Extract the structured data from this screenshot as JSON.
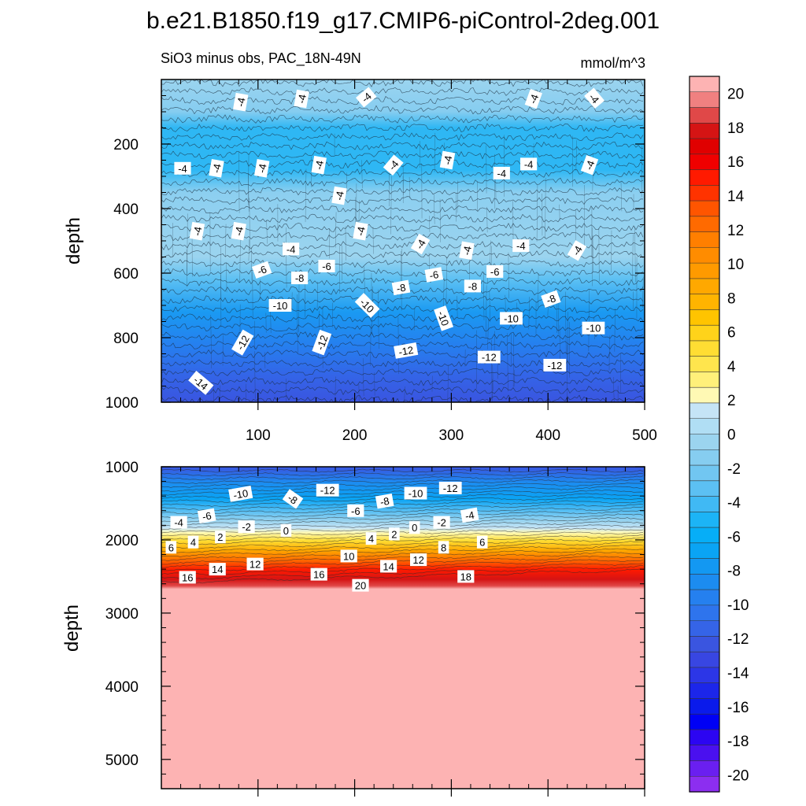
{
  "title": "b.e21.B1850.f19_g17.CMIP6-piControl-2deg.001",
  "subtitle_left": "SiO3 minus obs, PAC_18N-49N",
  "subtitle_right": "mmol/m^3",
  "chart_data": [
    {
      "type": "contour",
      "name": "upper-panel",
      "ylabel": "depth",
      "xlabel": "",
      "xlim": [
        0,
        500
      ],
      "ylim": [
        1000,
        0
      ],
      "xticks": [
        100,
        200,
        300,
        400,
        500
      ],
      "yticks": [
        200,
        400,
        600,
        800,
        1000
      ],
      "contour_labels": [
        {
          "t": "-4",
          "x": 82,
          "y": 70,
          "r": -80
        },
        {
          "t": "-4",
          "x": 145,
          "y": 60,
          "r": -80
        },
        {
          "t": "-4",
          "x": 212,
          "y": 55,
          "r": -40
        },
        {
          "t": "-4",
          "x": 385,
          "y": 60,
          "r": -70
        },
        {
          "t": "-4",
          "x": 448,
          "y": 58,
          "r": 50
        },
        {
          "t": "-4",
          "x": 22,
          "y": 275,
          "r": 0
        },
        {
          "t": "-4",
          "x": 57,
          "y": 275,
          "r": -80
        },
        {
          "t": "-4",
          "x": 104,
          "y": 275,
          "r": -80
        },
        {
          "t": "-4",
          "x": 163,
          "y": 265,
          "r": -80
        },
        {
          "t": "-4",
          "x": 240,
          "y": 265,
          "r": -50
        },
        {
          "t": "-4",
          "x": 296,
          "y": 250,
          "r": -80
        },
        {
          "t": "-4",
          "x": 352,
          "y": 290,
          "r": 0
        },
        {
          "t": "-4",
          "x": 380,
          "y": 262,
          "r": 0
        },
        {
          "t": "-4",
          "x": 443,
          "y": 265,
          "r": -70
        },
        {
          "t": "-4",
          "x": 184,
          "y": 360,
          "r": -80
        },
        {
          "t": "-4",
          "x": 37,
          "y": 470,
          "r": -80
        },
        {
          "t": "-4",
          "x": 80,
          "y": 470,
          "r": -80
        },
        {
          "t": "-4",
          "x": 206,
          "y": 470,
          "r": -80
        },
        {
          "t": "-4",
          "x": 268,
          "y": 510,
          "r": -60
        },
        {
          "t": "-4",
          "x": 316,
          "y": 530,
          "r": -80
        },
        {
          "t": "-4",
          "x": 372,
          "y": 515,
          "r": 0
        },
        {
          "t": "-4",
          "x": 430,
          "y": 530,
          "r": -60
        },
        {
          "t": "-4",
          "x": 134,
          "y": 525,
          "r": 0
        },
        {
          "t": "-6",
          "x": 104,
          "y": 590,
          "r": -20
        },
        {
          "t": "-6",
          "x": 171,
          "y": 578,
          "r": 0
        },
        {
          "t": "-8",
          "x": 143,
          "y": 615,
          "r": 0
        },
        {
          "t": "-6",
          "x": 282,
          "y": 605,
          "r": -10
        },
        {
          "t": "-6",
          "x": 345,
          "y": 595,
          "r": 0
        },
        {
          "t": "-8",
          "x": 248,
          "y": 645,
          "r": -10
        },
        {
          "t": "-8",
          "x": 322,
          "y": 640,
          "r": 0
        },
        {
          "t": "-8",
          "x": 403,
          "y": 680,
          "r": -20
        },
        {
          "t": "-10",
          "x": 123,
          "y": 700,
          "r": 0
        },
        {
          "t": "-10",
          "x": 213,
          "y": 700,
          "r": 45
        },
        {
          "t": "-10",
          "x": 292,
          "y": 740,
          "r": 70
        },
        {
          "t": "-10",
          "x": 362,
          "y": 740,
          "r": 0
        },
        {
          "t": "-10",
          "x": 447,
          "y": 770,
          "r": 0
        },
        {
          "t": "-12",
          "x": 84,
          "y": 815,
          "r": -60
        },
        {
          "t": "-12",
          "x": 166,
          "y": 815,
          "r": -70
        },
        {
          "t": "-12",
          "x": 253,
          "y": 840,
          "r": -10
        },
        {
          "t": "-12",
          "x": 339,
          "y": 860,
          "r": 0
        },
        {
          "t": "-12",
          "x": 407,
          "y": 885,
          "r": 0
        },
        {
          "t": "-14",
          "x": 41,
          "y": 940,
          "r": 40
        }
      ]
    },
    {
      "type": "contour",
      "name": "lower-panel",
      "ylabel": "depth",
      "xlabel": "",
      "xlim": [
        0,
        500
      ],
      "ylim": [
        5400,
        1000
      ],
      "yticks": [
        1000,
        2000,
        3000,
        4000,
        5000
      ],
      "contour_labels": [
        {
          "t": "-10",
          "x": 82,
          "y": 1370,
          "r": -10
        },
        {
          "t": "-8",
          "x": 136,
          "y": 1440,
          "r": 35
        },
        {
          "t": "-12",
          "x": 172,
          "y": 1320,
          "r": 0
        },
        {
          "t": "-12",
          "x": 299,
          "y": 1290,
          "r": 0
        },
        {
          "t": "-10",
          "x": 263,
          "y": 1360,
          "r": 0
        },
        {
          "t": "-8",
          "x": 231,
          "y": 1470,
          "r": -10
        },
        {
          "t": "-6",
          "x": 201,
          "y": 1600,
          "r": 0
        },
        {
          "t": "-6",
          "x": 47,
          "y": 1670,
          "r": -10
        },
        {
          "t": "-4",
          "x": 18,
          "y": 1760,
          "r": 0
        },
        {
          "t": "-4",
          "x": 319,
          "y": 1660,
          "r": -10
        },
        {
          "t": "-2",
          "x": 88,
          "y": 1820,
          "r": 0
        },
        {
          "t": "-2",
          "x": 290,
          "y": 1760,
          "r": 0
        },
        {
          "t": "0",
          "x": 129,
          "y": 1870,
          "r": 0
        },
        {
          "t": "0",
          "x": 262,
          "y": 1830,
          "r": 0
        },
        {
          "t": "2",
          "x": 61,
          "y": 1960,
          "r": 0
        },
        {
          "t": "2",
          "x": 241,
          "y": 1920,
          "r": 0
        },
        {
          "t": "4",
          "x": 33,
          "y": 2030,
          "r": 0
        },
        {
          "t": "4",
          "x": 217,
          "y": 1980,
          "r": 0
        },
        {
          "t": "6",
          "x": 10,
          "y": 2100,
          "r": 0
        },
        {
          "t": "6",
          "x": 332,
          "y": 2030,
          "r": 0
        },
        {
          "t": "8",
          "x": 292,
          "y": 2100,
          "r": 0
        },
        {
          "t": "10",
          "x": 194,
          "y": 2220,
          "r": 0
        },
        {
          "t": "12",
          "x": 97,
          "y": 2330,
          "r": 0
        },
        {
          "t": "12",
          "x": 266,
          "y": 2270,
          "r": 0
        },
        {
          "t": "14",
          "x": 58,
          "y": 2400,
          "r": 0
        },
        {
          "t": "14",
          "x": 235,
          "y": 2360,
          "r": 0
        },
        {
          "t": "16",
          "x": 27,
          "y": 2510,
          "r": 0
        },
        {
          "t": "16",
          "x": 163,
          "y": 2470,
          "r": 0
        },
        {
          "t": "18",
          "x": 315,
          "y": 2500,
          "r": 0
        },
        {
          "t": "20",
          "x": 206,
          "y": 2620,
          "r": 0
        }
      ]
    },
    {
      "type": "colorbar",
      "name": "colorbar",
      "range": [
        -21,
        21
      ],
      "step": 1,
      "tick_labels": [
        "20",
        "18",
        "16",
        "14",
        "12",
        "10",
        "8",
        "6",
        "4",
        "2",
        "0",
        "-2",
        "-4",
        "-6",
        "-8",
        "-10",
        "-12",
        "-14",
        "-16",
        "-18",
        "-20"
      ],
      "colors_top_to_bottom": [
        "#fdb3b3",
        "#f08080",
        "#e04848",
        "#d51414",
        "#e00000",
        "#f00000",
        "#ff1a00",
        "#ff3300",
        "#ff5500",
        "#ff6a00",
        "#ff7f00",
        "#ff8c00",
        "#ff9a00",
        "#ffa800",
        "#ffb400",
        "#ffc400",
        "#ffd31a",
        "#ffdd33",
        "#ffe54d",
        "#fff07a",
        "#fff9b4",
        "#c5e4f6",
        "#b0def4",
        "#9bd4ef",
        "#86cdf0",
        "#71c6f1",
        "#5cc0f3",
        "#40b9f4",
        "#1cb4f6",
        "#06aef7",
        "#0aa4f4",
        "#1398f2",
        "#1c8cf0",
        "#2580ef",
        "#2e74ed",
        "#3564e7",
        "#3a55e0",
        "#3846e2",
        "#2c36e7",
        "#1c26ea",
        "#0a1aeb",
        "#0000f5",
        "#2c05f2",
        "#4a10ef",
        "#6a1ff0",
        "#8c2ef0"
      ]
    }
  ]
}
